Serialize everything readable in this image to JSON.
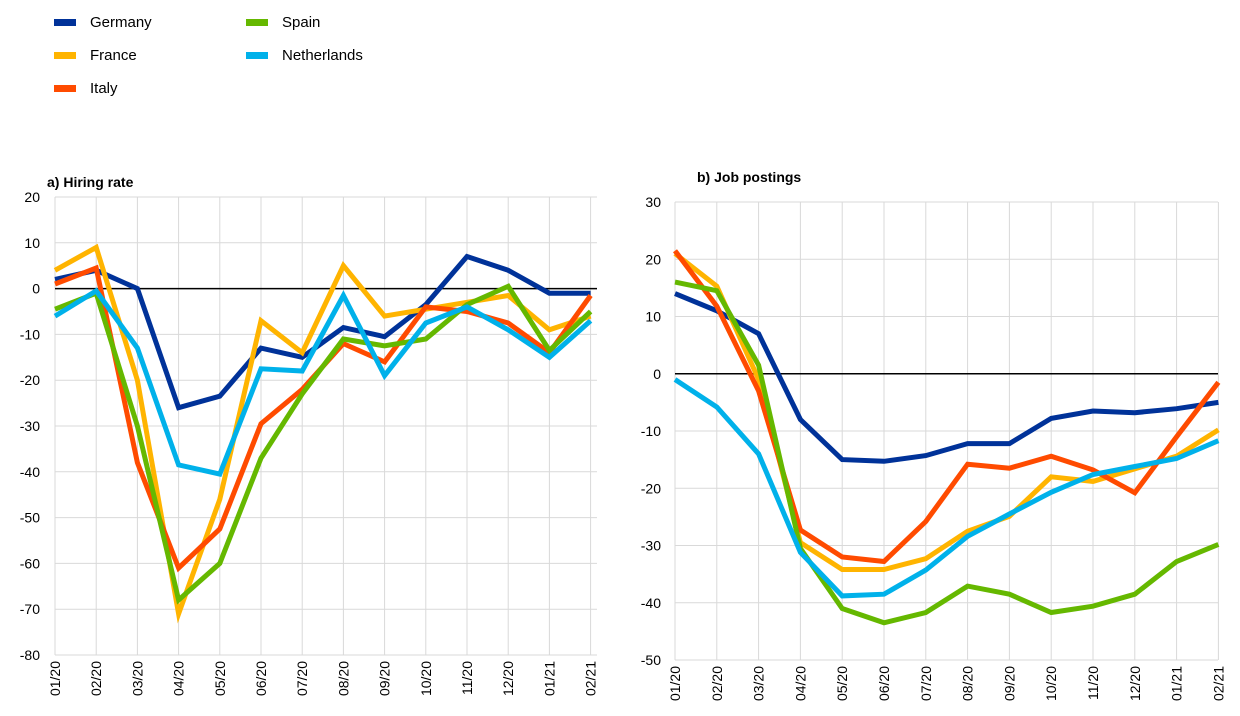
{
  "legend": {
    "items": [
      {
        "name": "Germany",
        "color": "#003299"
      },
      {
        "name": "France",
        "color": "#FFB400"
      },
      {
        "name": "Italy",
        "color": "#FF4B00"
      },
      {
        "name": "Spain",
        "color": "#65B800"
      },
      {
        "name": "Netherlands",
        "color": "#00B1EA"
      }
    ]
  },
  "chart_data": [
    {
      "type": "line",
      "title": "a) Hiring rate",
      "x": [
        "01/20",
        "02/20",
        "03/20",
        "04/20",
        "05/20",
        "06/20",
        "07/20",
        "08/20",
        "09/20",
        "10/20",
        "11/20",
        "12/20",
        "01/21",
        "02/21"
      ],
      "ylim": [
        -80,
        20
      ],
      "yticks": [
        20,
        10,
        0,
        -10,
        -20,
        -30,
        -40,
        -50,
        -60,
        -70,
        -80
      ],
      "grid": true,
      "zero_line": true,
      "series": [
        {
          "name": "Germany",
          "color": "#003299",
          "values": [
            2,
            4,
            0,
            -26,
            -23.5,
            -13,
            -15,
            -8.5,
            -10.5,
            -3.5,
            7,
            4,
            -1,
            -1
          ]
        },
        {
          "name": "France",
          "color": "#FFB400",
          "values": [
            4,
            9,
            -20,
            -71,
            -46,
            -7,
            -14,
            5,
            -6,
            -4.5,
            -3,
            -1.5,
            -9,
            -6
          ]
        },
        {
          "name": "Italy",
          "color": "#FF4B00",
          "values": [
            1,
            4.5,
            -38,
            -61,
            -52.5,
            -29.5,
            -22,
            -12,
            -16,
            -4,
            -5,
            -7.5,
            -14,
            -1.5
          ]
        },
        {
          "name": "Spain",
          "color": "#65B800",
          "values": [
            -4.5,
            -1,
            -30,
            -68,
            -60,
            -37,
            -23,
            -11,
            -12.5,
            -11,
            -3.5,
            0.5,
            -13.5,
            -5
          ]
        },
        {
          "name": "Netherlands",
          "color": "#00B1EA",
          "values": [
            -6,
            -0.5,
            -13,
            -38.5,
            -40.5,
            -17.5,
            -18,
            -1.5,
            -19,
            -7.5,
            -4,
            -9,
            -15,
            -7
          ]
        }
      ]
    },
    {
      "type": "line",
      "title": "b) Job postings",
      "x": [
        "01/20",
        "02/20",
        "03/20",
        "04/20",
        "05/20",
        "06/20",
        "07/20",
        "08/20",
        "09/20",
        "10/20",
        "11/20",
        "12/20",
        "01/21",
        "02/21"
      ],
      "ylim": [
        -50,
        30
      ],
      "yticks": [
        30,
        20,
        10,
        0,
        -10,
        -20,
        -30,
        -40,
        -50
      ],
      "grid": true,
      "zero_line": true,
      "series": [
        {
          "name": "Germany",
          "color": "#003299",
          "values": [
            14,
            11,
            7,
            -8,
            -15,
            -15.3,
            -14.3,
            -12.2,
            -12.2,
            -7.8,
            -6.5,
            -6.8,
            -6.1,
            -5
          ]
        },
        {
          "name": "France",
          "color": "#FFB400",
          "values": [
            21,
            15.3,
            -1,
            -29.5,
            -34.2,
            -34.2,
            -32.3,
            -27.5,
            -24.9,
            -18,
            -18.8,
            -16.6,
            -14.4,
            -9.8
          ]
        },
        {
          "name": "Italy",
          "color": "#FF4B00",
          "values": [
            21.5,
            11.8,
            -3,
            -27.3,
            -32,
            -32.8,
            -25.8,
            -15.8,
            -16.5,
            -14.4,
            -16.8,
            -20.8,
            -11,
            -1.5
          ]
        },
        {
          "name": "Spain",
          "color": "#65B800",
          "values": [
            16,
            14.5,
            1.5,
            -30.5,
            -41,
            -43.5,
            -41.7,
            -37.1,
            -38.5,
            -41.7,
            -40.6,
            -38.5,
            -32.8,
            -29.8
          ]
        },
        {
          "name": "Netherlands",
          "color": "#00B1EA",
          "values": [
            -1,
            -5.8,
            -14,
            -31.2,
            -38.8,
            -38.5,
            -34.3,
            -28.4,
            -24.5,
            -20.7,
            -17.6,
            -16.2,
            -14.8,
            -11.7
          ]
        }
      ]
    }
  ]
}
